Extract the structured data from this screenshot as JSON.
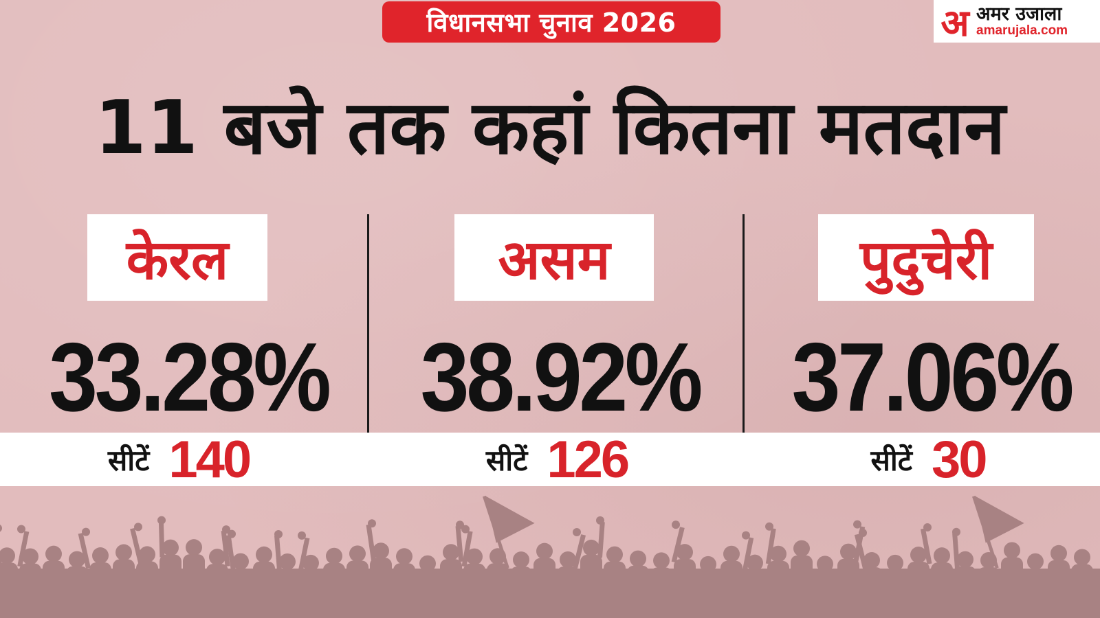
{
  "tag": "विधानसभा चुनाव 2026",
  "logo": {
    "hindi": "अमर उजाला",
    "english": "amarujala.com",
    "mark": "अ"
  },
  "headline": "11 बजे तक कहां कितना मतदान",
  "seats_label": "सीटें",
  "states": [
    {
      "name": "केरल",
      "turnout": "33.28%",
      "seats": "140"
    },
    {
      "name": "असम",
      "turnout": "38.92%",
      "seats": "126"
    },
    {
      "name": "पुदुचेरी",
      "turnout": "37.06%",
      "seats": "30"
    }
  ],
  "colors": {
    "accent": "#e0242b",
    "background": "#e2bcbd",
    "text": "#111111",
    "crowd": "#a88283"
  }
}
